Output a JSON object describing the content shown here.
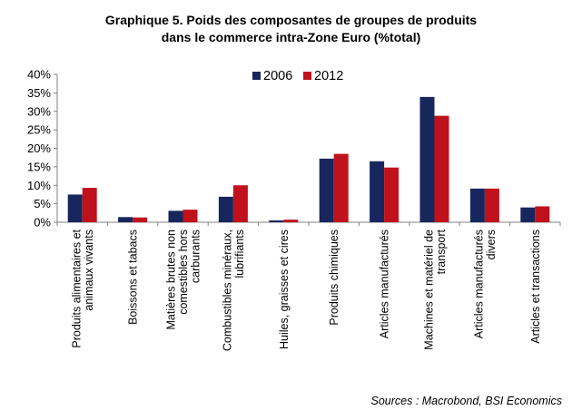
{
  "title": {
    "line1": "Graphique 5. Poids des composantes de groupes de produits",
    "line2": "dans le commerce intra-Zone Euro (%total)"
  },
  "source": "Sources : Macrobond, BSI Economics",
  "colors": {
    "s2006": "#17275e",
    "s2012": "#c0111c",
    "axis": "#808080"
  },
  "chart_data": {
    "type": "bar",
    "title": "Graphique 5. Poids des composantes de groupes de produits dans le commerce intra-Zone Euro (%total)",
    "xlabel": "",
    "ylabel": "",
    "ylim": [
      0,
      40
    ],
    "yticks": [
      0,
      5,
      10,
      15,
      20,
      25,
      30,
      35,
      40
    ],
    "ytick_labels": [
      "0%",
      "5%",
      "10%",
      "15%",
      "20%",
      "25%",
      "30%",
      "35%",
      "40%"
    ],
    "grid": false,
    "legend": "top-center",
    "categories": [
      [
        "Produits alimentaires et",
        "animaux vivants"
      ],
      [
        "Boissons et tabacs"
      ],
      [
        "Matières brutes non",
        "comestibles hors",
        "carburants"
      ],
      [
        "Combustibles minéraux,",
        "lubrifiants"
      ],
      [
        "Huiles, graisses et cires"
      ],
      [
        "Produits chimiques"
      ],
      [
        "Articles manufacturés"
      ],
      [
        "Machines et matériel de",
        "transport"
      ],
      [
        "Articles manufacturés",
        "divers"
      ],
      [
        "Articles et transactions"
      ]
    ],
    "series": [
      {
        "name": "2006",
        "values": [
          7.5,
          1.4,
          3.1,
          6.9,
          0.5,
          17.2,
          16.5,
          33.9,
          9.1,
          4.0
        ]
      },
      {
        "name": "2012",
        "values": [
          9.3,
          1.3,
          3.4,
          10.0,
          0.7,
          18.5,
          14.8,
          28.8,
          9.1,
          4.3
        ]
      }
    ]
  }
}
